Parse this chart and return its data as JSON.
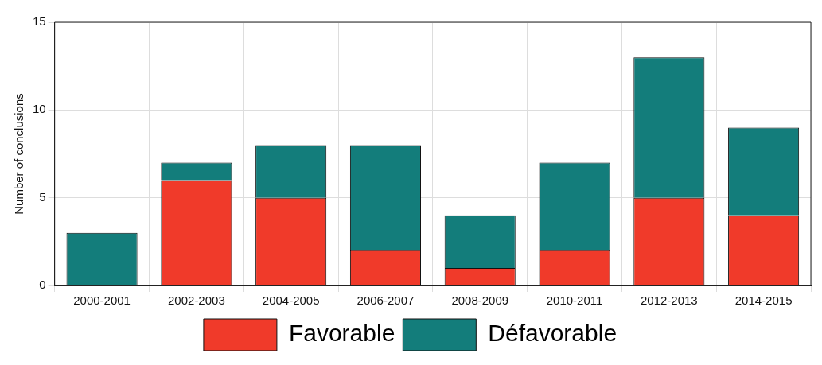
{
  "chart_data": {
    "type": "bar",
    "ylabel": "Number of conclusions",
    "categories": [
      "2000-2001",
      "2002-2003",
      "2004-2005",
      "2006-2007",
      "2008-2009",
      "2010-2011",
      "2012-2013",
      "2014-2015"
    ],
    "series": [
      {
        "name": "Favorable",
        "color": "#f03a2a",
        "values": [
          0,
          6,
          5,
          2,
          1,
          2,
          5,
          4
        ]
      },
      {
        "name": "Défavorable",
        "color": "#137d7b",
        "values": [
          3,
          1,
          3,
          6,
          3,
          5,
          8,
          5
        ]
      }
    ],
    "stacked": true,
    "ylim": [
      0,
      15
    ],
    "yticks": [
      0,
      5,
      10,
      15
    ],
    "grid": true,
    "legend": "bottom"
  }
}
